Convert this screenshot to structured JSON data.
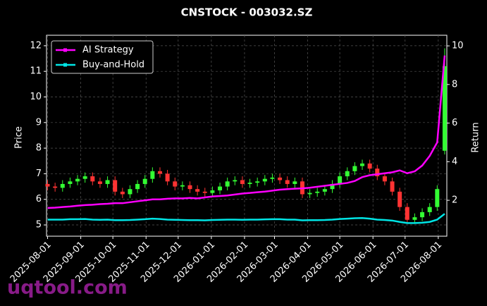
{
  "chart_data": {
    "type": "candlestick",
    "title": "CNSTOCK - 003032.SZ",
    "ylabel": "Price",
    "y2label": "Return",
    "watermark": "uqtool.com",
    "x": [
      "2025-08-01",
      "2025-08-08",
      "2025-08-15",
      "2025-08-22",
      "2025-08-29",
      "2025-09-05",
      "2025-09-12",
      "2025-09-19",
      "2025-09-26",
      "2025-10-03",
      "2025-10-10",
      "2025-10-17",
      "2025-10-24",
      "2025-10-31",
      "2025-11-07",
      "2025-11-14",
      "2025-11-21",
      "2025-11-28",
      "2025-12-05",
      "2025-12-12",
      "2025-12-19",
      "2025-12-26",
      "2026-01-02",
      "2026-01-09",
      "2026-01-16",
      "2026-01-23",
      "2026-01-30",
      "2026-02-06",
      "2026-02-13",
      "2026-02-20",
      "2026-02-27",
      "2026-03-06",
      "2026-03-13",
      "2026-03-20",
      "2026-03-27",
      "2026-04-03",
      "2026-04-10",
      "2026-04-17",
      "2026-04-24",
      "2026-05-01",
      "2026-05-08",
      "2026-05-15",
      "2026-05-22",
      "2026-05-29",
      "2026-06-05",
      "2026-06-12",
      "2026-06-19",
      "2026-06-26",
      "2026-07-03",
      "2026-07-10",
      "2026-07-17",
      "2026-07-24",
      "2026-07-31",
      "2026-08-07"
    ],
    "open": [
      6.6,
      6.5,
      6.45,
      6.6,
      6.7,
      6.8,
      6.9,
      6.7,
      6.6,
      6.75,
      6.3,
      6.2,
      6.4,
      6.6,
      6.8,
      7.1,
      7.0,
      6.7,
      6.5,
      6.55,
      6.4,
      6.3,
      6.25,
      6.35,
      6.5,
      6.7,
      6.75,
      6.6,
      6.65,
      6.7,
      6.8,
      6.85,
      6.75,
      6.6,
      6.7,
      6.2,
      6.25,
      6.3,
      6.4,
      6.6,
      6.9,
      7.1,
      7.3,
      7.4,
      7.2,
      6.9,
      6.7,
      6.3,
      5.7,
      5.2,
      5.3,
      5.5,
      5.7,
      7.9
    ],
    "high": [
      6.75,
      6.65,
      6.75,
      6.85,
      6.95,
      7.05,
      7.05,
      6.85,
      6.9,
      6.9,
      6.45,
      6.55,
      6.75,
      6.95,
      7.25,
      7.25,
      7.15,
      6.85,
      6.7,
      6.7,
      6.55,
      6.45,
      6.5,
      6.65,
      6.85,
      6.9,
      6.9,
      6.8,
      6.85,
      6.95,
      7.0,
      7.0,
      6.9,
      6.85,
      6.85,
      6.4,
      6.45,
      6.55,
      6.75,
      7.05,
      7.25,
      7.45,
      7.55,
      7.55,
      7.35,
      7.05,
      6.85,
      6.45,
      5.85,
      5.45,
      5.65,
      5.85,
      6.55,
      11.9
    ],
    "low": [
      6.35,
      6.3,
      6.3,
      6.45,
      6.55,
      6.65,
      6.55,
      6.45,
      6.45,
      6.15,
      6.05,
      6.05,
      6.25,
      6.45,
      6.65,
      6.85,
      6.55,
      6.35,
      6.35,
      6.25,
      6.15,
      6.1,
      6.1,
      6.2,
      6.35,
      6.55,
      6.45,
      6.45,
      6.5,
      6.55,
      6.65,
      6.6,
      6.45,
      6.45,
      6.05,
      6.05,
      6.1,
      6.15,
      6.25,
      6.45,
      6.75,
      6.95,
      7.15,
      7.05,
      6.75,
      6.55,
      6.15,
      5.55,
      5.05,
      5.05,
      5.15,
      5.35,
      5.55,
      7.75
    ],
    "close": [
      6.5,
      6.45,
      6.6,
      6.7,
      6.8,
      6.9,
      6.7,
      6.6,
      6.75,
      6.3,
      6.2,
      6.4,
      6.6,
      6.8,
      7.1,
      7.0,
      6.7,
      6.5,
      6.55,
      6.4,
      6.3,
      6.25,
      6.35,
      6.5,
      6.7,
      6.75,
      6.6,
      6.65,
      6.7,
      6.8,
      6.85,
      6.75,
      6.6,
      6.7,
      6.2,
      6.25,
      6.3,
      6.4,
      6.6,
      6.9,
      7.1,
      7.3,
      7.4,
      7.2,
      6.9,
      6.7,
      6.3,
      5.7,
      5.2,
      5.3,
      5.5,
      5.7,
      6.4,
      11.2
    ],
    "up_color": "#33ff33",
    "down_color": "#ff3333",
    "series": [
      {
        "name": "AI Strategy",
        "color": "#ff00ff",
        "axis": "y2",
        "values": [
          1.6,
          1.62,
          1.65,
          1.68,
          1.72,
          1.75,
          1.77,
          1.8,
          1.82,
          1.85,
          1.85,
          1.9,
          1.95,
          2.0,
          2.05,
          2.05,
          2.08,
          2.1,
          2.1,
          2.12,
          2.1,
          2.15,
          2.2,
          2.22,
          2.25,
          2.3,
          2.35,
          2.38,
          2.42,
          2.45,
          2.5,
          2.55,
          2.58,
          2.6,
          2.62,
          2.65,
          2.7,
          2.75,
          2.8,
          2.85,
          2.9,
          3.0,
          3.2,
          3.3,
          3.35,
          3.4,
          3.45,
          3.55,
          3.4,
          3.5,
          3.8,
          4.3,
          5.0,
          9.5
        ]
      },
      {
        "name": "Buy-and-Hold",
        "color": "#00e5e5",
        "axis": "y2",
        "values": [
          1.0,
          1.0,
          1.0,
          1.02,
          1.02,
          1.03,
          1.0,
          0.99,
          1.0,
          0.97,
          0.97,
          0.98,
          1.0,
          1.02,
          1.05,
          1.03,
          1.0,
          0.99,
          0.98,
          0.97,
          0.97,
          0.96,
          0.98,
          0.99,
          1.0,
          1.0,
          0.99,
          1.0,
          1.0,
          1.01,
          1.02,
          1.02,
          1.0,
          1.0,
          0.96,
          0.97,
          0.97,
          0.98,
          1.0,
          1.03,
          1.05,
          1.07,
          1.08,
          1.05,
          1.0,
          0.98,
          0.95,
          0.88,
          0.82,
          0.82,
          0.84,
          0.88,
          1.0,
          1.3
        ]
      }
    ],
    "xlim": [
      "2025-07-31",
      "2026-08-09"
    ],
    "xticks": [
      "2025-08-01",
      "2025-09-01",
      "2025-10-01",
      "2025-11-01",
      "2025-12-01",
      "2026-01-01",
      "2026-02-01",
      "2026-03-01",
      "2026-04-01",
      "2026-05-01",
      "2026-06-01",
      "2026-07-01",
      "2026-08-01"
    ],
    "ylim": [
      4.56,
      12.41
    ],
    "yticks": [
      5,
      6,
      7,
      8,
      9,
      10,
      11,
      12
    ],
    "y2lim": [
      0.14,
      10.55
    ],
    "y2ticks": [
      2,
      4,
      6,
      8,
      10
    ],
    "grid": true,
    "legend": "upper left"
  }
}
